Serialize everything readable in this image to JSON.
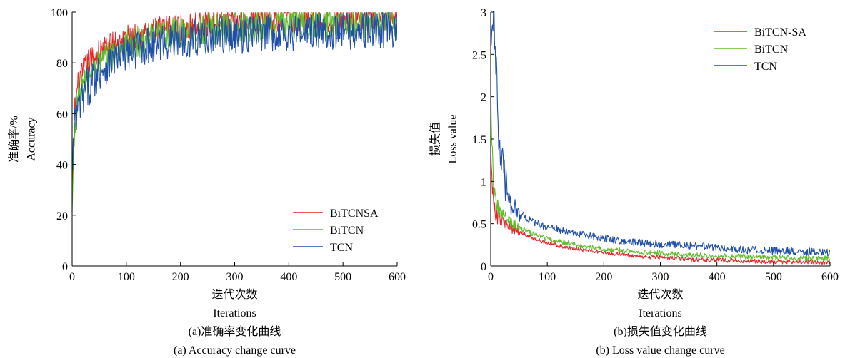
{
  "chart_data": [
    {
      "type": "line",
      "ylabel_cn": "准确率/%",
      "ylabel": "Accuracy",
      "xlabel_cn": "迭代次数",
      "xlabel": "Iterations",
      "caption_cn": "(a)准确率变化曲线",
      "caption": "(a) Accuracy change curve",
      "xlim": [
        0,
        600
      ],
      "ylim": [
        0,
        100
      ],
      "xticks": [
        0,
        100,
        200,
        300,
        400,
        500,
        600
      ],
      "yticks": [
        0,
        20,
        40,
        60,
        80,
        100
      ],
      "legend_position": "bottom-right",
      "series": [
        {
          "name": "BiTCNSA",
          "color": "#e8262a",
          "x": [
            0,
            2,
            5,
            10,
            20,
            30,
            50,
            75,
            100,
            150,
            200,
            250,
            300,
            350,
            400,
            450,
            500,
            550,
            600
          ],
          "values": [
            22,
            45,
            62,
            70,
            76,
            80,
            84,
            87.5,
            89.5,
            92.5,
            94,
            95.5,
            96,
            96.5,
            97,
            97.5,
            97.5,
            98,
            98
          ]
        },
        {
          "name": "BiTCN",
          "color": "#5cbf2a",
          "x": [
            0,
            2,
            5,
            10,
            20,
            30,
            50,
            75,
            100,
            150,
            200,
            250,
            300,
            350,
            400,
            450,
            500,
            550,
            600
          ],
          "values": [
            18,
            40,
            58,
            66,
            71,
            75,
            79.5,
            83.5,
            86.5,
            90,
            92,
            93.5,
            94.5,
            95,
            95.5,
            96,
            96,
            96.5,
            96.5
          ]
        },
        {
          "name": "TCN",
          "color": "#1f4fa8",
          "x": [
            0,
            2,
            5,
            10,
            20,
            30,
            50,
            75,
            100,
            150,
            200,
            250,
            300,
            350,
            400,
            450,
            500,
            550,
            600
          ],
          "values": [
            35,
            45,
            55,
            60,
            66,
            71,
            77,
            81,
            84,
            87.5,
            89.5,
            90.5,
            91,
            91.5,
            92,
            92.5,
            92.5,
            93,
            93
          ]
        }
      ]
    },
    {
      "type": "line",
      "ylabel_cn": "损失值",
      "ylabel": "Loss value",
      "xlabel_cn": "迭代次数",
      "xlabel": "Iterations",
      "caption_cn": "(b)损失值变化曲线",
      "caption": "(b) Loss value change curve",
      "xlim": [
        0,
        600
      ],
      "ylim": [
        0,
        3
      ],
      "xticks": [
        0,
        100,
        200,
        300,
        400,
        500,
        600
      ],
      "yticks": [
        0,
        0.5,
        1,
        1.5,
        2,
        2.5,
        3
      ],
      "ytick_labels": [
        "0",
        "0.5",
        "1",
        "1.5",
        "2",
        "2.5",
        "3"
      ],
      "legend_position": "top-right",
      "series": [
        {
          "name": "BiTCN-SA",
          "color": "#e8262a",
          "x": [
            0,
            1,
            3,
            5,
            8,
            12,
            20,
            30,
            50,
            75,
            100,
            150,
            200,
            250,
            300,
            350,
            400,
            450,
            500,
            550,
            600
          ],
          "values": [
            1.6,
            1.2,
            0.9,
            0.75,
            0.65,
            0.58,
            0.52,
            0.47,
            0.4,
            0.33,
            0.27,
            0.2,
            0.16,
            0.12,
            0.1,
            0.08,
            0.07,
            0.06,
            0.05,
            0.05,
            0.04
          ]
        },
        {
          "name": "BiTCN",
          "color": "#5cbf2a",
          "x": [
            0,
            1,
            3,
            5,
            8,
            12,
            20,
            30,
            50,
            75,
            100,
            150,
            200,
            250,
            300,
            350,
            400,
            450,
            500,
            550,
            600
          ],
          "values": [
            2.3,
            1.8,
            1.3,
            1.0,
            0.82,
            0.7,
            0.6,
            0.54,
            0.46,
            0.38,
            0.32,
            0.25,
            0.2,
            0.17,
            0.15,
            0.13,
            0.12,
            0.11,
            0.1,
            0.09,
            0.09
          ]
        },
        {
          "name": "TCN",
          "color": "#1f4fa8",
          "x": [
            0,
            2,
            5,
            8,
            10,
            12,
            15,
            20,
            25,
            30,
            40,
            50,
            75,
            100,
            150,
            200,
            250,
            300,
            350,
            400,
            450,
            500,
            550,
            600
          ],
          "values": [
            3.0,
            2.8,
            3.0,
            2.3,
            2.6,
            1.8,
            1.5,
            1.2,
            1.0,
            0.85,
            0.7,
            0.62,
            0.52,
            0.46,
            0.38,
            0.33,
            0.28,
            0.26,
            0.24,
            0.22,
            0.19,
            0.18,
            0.17,
            0.16
          ]
        }
      ]
    }
  ]
}
